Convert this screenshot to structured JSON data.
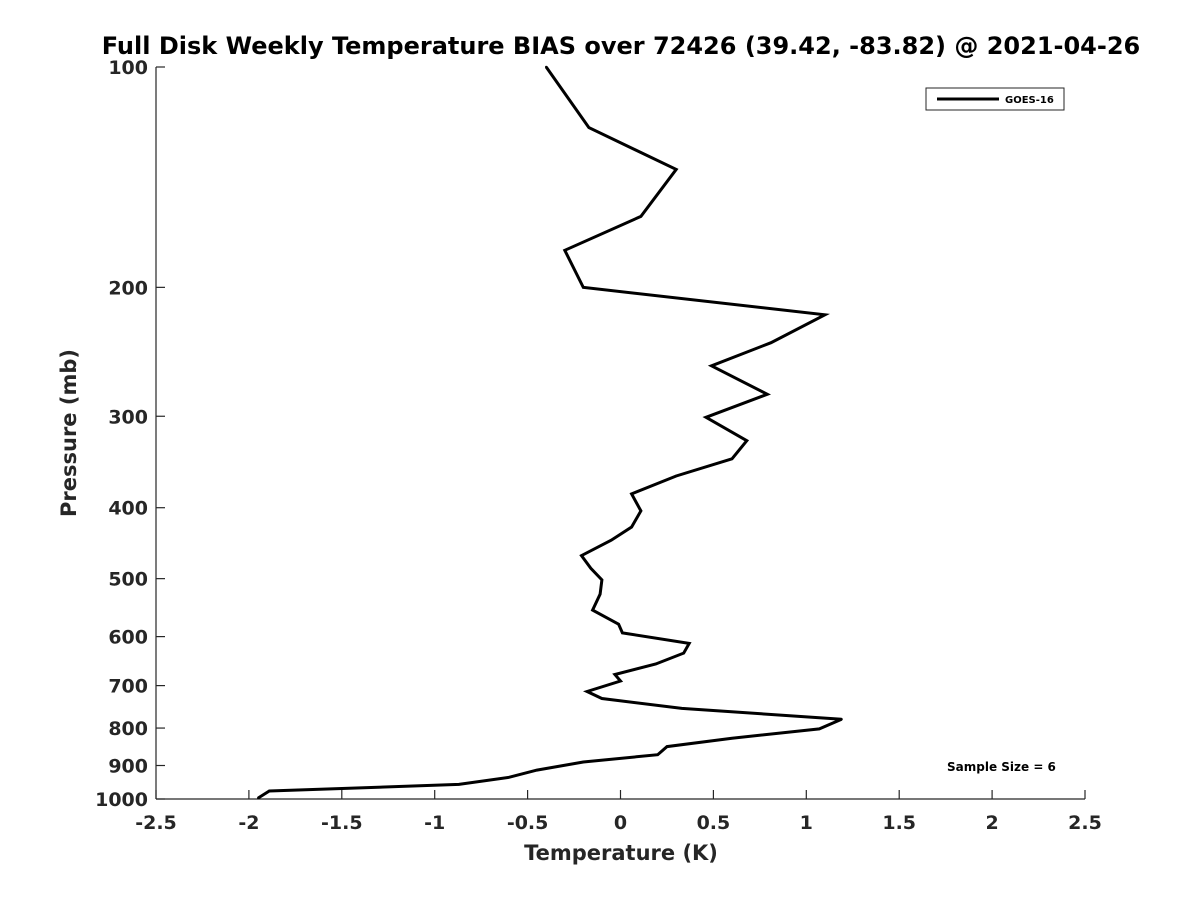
{
  "chart_data": {
    "type": "line",
    "title": "Full Disk Weekly Temperature BIAS over 72426 (39.42, -83.82) @ 2021-04-26",
    "xlabel": "Temperature (K)",
    "ylabel": "Pressure (mb)",
    "xlim": [
      -2.5,
      2.5
    ],
    "ylim": [
      100,
      1000
    ],
    "yscale": "log",
    "yreversed": true,
    "x_ticks": [
      "-2.5",
      "-2",
      "-1.5",
      "-1",
      "-0.5",
      "0",
      "0.5",
      "1",
      "1.5",
      "2",
      "2.5"
    ],
    "y_ticks": [
      "100",
      "200",
      "300",
      "400",
      "500",
      "600",
      "700",
      "800",
      "900",
      "1000"
    ],
    "grid": false,
    "legend_position": "top-right",
    "line_color": "#000000",
    "series": [
      {
        "name": "GOES-16",
        "points": [
          [
            -0.4,
            100
          ],
          [
            -0.17,
            121
          ],
          [
            0.3,
            138
          ],
          [
            0.11,
            160
          ],
          [
            -0.3,
            178
          ],
          [
            -0.2,
            200
          ],
          [
            1.1,
            218
          ],
          [
            0.81,
            238
          ],
          [
            0.49,
            256
          ],
          [
            0.79,
            280
          ],
          [
            0.46,
            301
          ],
          [
            0.68,
            324
          ],
          [
            0.6,
            343
          ],
          [
            0.3,
            362
          ],
          [
            0.06,
            383
          ],
          [
            0.11,
            404
          ],
          [
            0.06,
            425
          ],
          [
            -0.05,
            443
          ],
          [
            -0.21,
            465
          ],
          [
            -0.16,
            484
          ],
          [
            -0.1,
            502
          ],
          [
            -0.11,
            525
          ],
          [
            -0.15,
            552
          ],
          [
            -0.01,
            577
          ],
          [
            0.01,
            593
          ],
          [
            0.37,
            613
          ],
          [
            0.34,
            632
          ],
          [
            0.19,
            654
          ],
          [
            -0.03,
            676
          ],
          [
            0.0,
            690
          ],
          [
            -0.18,
            713
          ],
          [
            -0.1,
            729
          ],
          [
            0.33,
            752
          ],
          [
            1.19,
            778
          ],
          [
            1.07,
            802
          ],
          [
            0.6,
            826
          ],
          [
            0.25,
            848
          ],
          [
            0.2,
            870
          ],
          [
            -0.2,
            890
          ],
          [
            -0.45,
            913
          ],
          [
            -0.6,
            934
          ],
          [
            -0.87,
            955
          ],
          [
            -1.89,
            975
          ],
          [
            -1.95,
            997
          ]
        ]
      }
    ],
    "annotations": [
      "Sample Size = 6"
    ]
  }
}
